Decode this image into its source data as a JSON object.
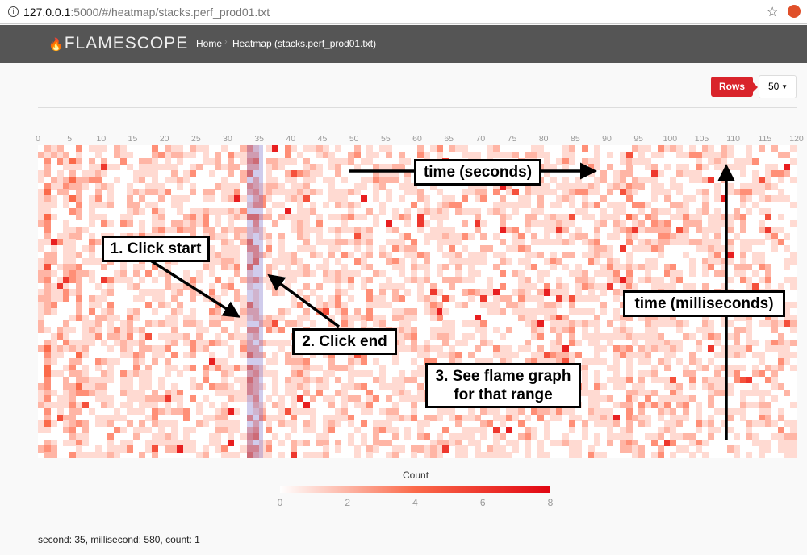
{
  "browser": {
    "url_host": "127.0.0.1",
    "url_rest": ":5000/#/heatmap/stacks.perf_prod01.txt"
  },
  "nav": {
    "brand": "FLAMESCOPE",
    "links": [
      "Home",
      "Heatmap (stacks.perf_prod01.txt)"
    ]
  },
  "controls": {
    "rows_label": "Rows",
    "rows_value": "50"
  },
  "heatmap": {
    "x_ticks": [
      "0",
      "5",
      "10",
      "15",
      "20",
      "25",
      "30",
      "35",
      "40",
      "45",
      "50",
      "55",
      "60",
      "65",
      "70",
      "75",
      "80",
      "85",
      "90",
      "95",
      "100",
      "105",
      "110",
      "115",
      "120"
    ],
    "columns": 120,
    "rows": 50,
    "selection_seconds": [
      33,
      34
    ],
    "colors": {
      "low": "#ffffff",
      "mid": "#fb6a4a",
      "high": "#e10612",
      "selection": "#786ec8"
    }
  },
  "annotations": {
    "time_seconds": "time (seconds)",
    "click_start": "1. Click start",
    "click_end": "2. Click end",
    "see_flame_line1": "3. See flame graph",
    "see_flame_line2": "for that range",
    "time_ms": "time (milliseconds)"
  },
  "legend": {
    "title": "Count",
    "ticks": [
      "0",
      "2",
      "4",
      "6",
      "8"
    ],
    "min": 0,
    "max": 8
  },
  "status": "second: 35, millisecond: 580, count: 1"
}
